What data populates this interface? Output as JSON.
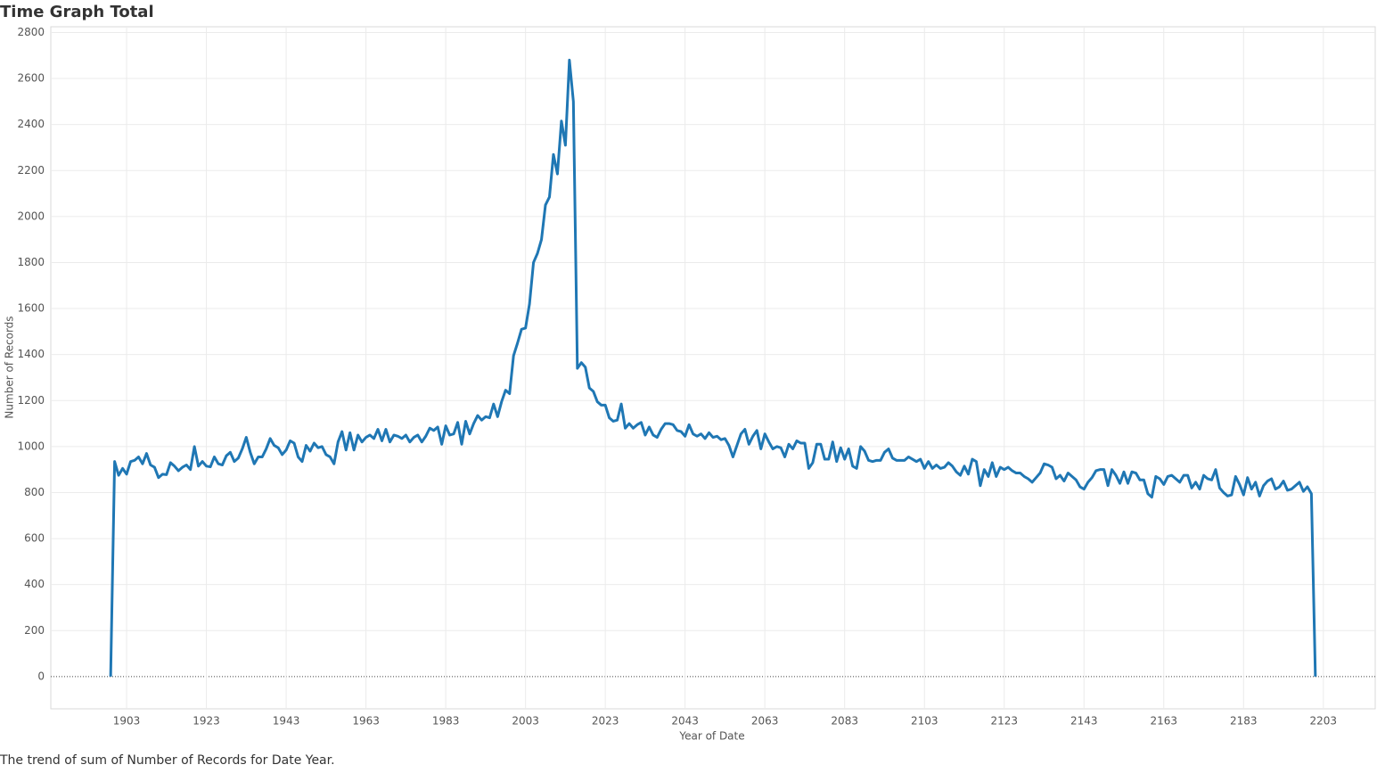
{
  "chart_data": {
    "type": "line",
    "title": "Time Graph Total",
    "x_label": "Year of Date",
    "y_label": "Number of Records",
    "caption": "The trend of sum of Number of Records for Date Year.",
    "x": [
      1899,
      1900,
      1901,
      1902,
      1903,
      1904,
      1905,
      1906,
      1907,
      1908,
      1909,
      1910,
      1911,
      1912,
      1913,
      1914,
      1915,
      1916,
      1917,
      1918,
      1919,
      1920,
      1921,
      1922,
      1923,
      1924,
      1925,
      1926,
      1927,
      1928,
      1929,
      1930,
      1931,
      1932,
      1933,
      1934,
      1935,
      1936,
      1937,
      1938,
      1939,
      1940,
      1941,
      1942,
      1943,
      1944,
      1945,
      1946,
      1947,
      1948,
      1949,
      1950,
      1951,
      1952,
      1953,
      1954,
      1955,
      1956,
      1957,
      1958,
      1959,
      1960,
      1961,
      1962,
      1963,
      1964,
      1965,
      1966,
      1967,
      1968,
      1969,
      1970,
      1971,
      1972,
      1973,
      1974,
      1975,
      1976,
      1977,
      1978,
      1979,
      1980,
      1981,
      1982,
      1983,
      1984,
      1985,
      1986,
      1987,
      1988,
      1989,
      1990,
      1991,
      1992,
      1993,
      1994,
      1995,
      1996,
      1997,
      1998,
      1999,
      2000,
      2001,
      2002,
      2003,
      2004,
      2005,
      2006,
      2007,
      2008,
      2009,
      2010,
      2011,
      2012,
      2013,
      2014,
      2015,
      2016,
      2017,
      2018,
      2019,
      2020,
      2021,
      2022,
      2023,
      2024,
      2025,
      2026,
      2027,
      2028,
      2029,
      2030,
      2031,
      2032,
      2033,
      2034,
      2035,
      2036,
      2037,
      2038,
      2039,
      2040,
      2041,
      2042,
      2043,
      2044,
      2045,
      2046,
      2047,
      2048,
      2049,
      2050,
      2051,
      2052,
      2053,
      2054,
      2055,
      2056,
      2057,
      2058,
      2059,
      2060,
      2061,
      2062,
      2063,
      2064,
      2065,
      2066,
      2067,
      2068,
      2069,
      2070,
      2071,
      2072,
      2073,
      2074,
      2075,
      2076,
      2077,
      2078,
      2079,
      2080,
      2081,
      2082,
      2083,
      2084,
      2085,
      2086,
      2087,
      2088,
      2089,
      2090,
      2091,
      2092,
      2093,
      2094,
      2095,
      2096,
      2097,
      2098,
      2099,
      2100,
      2101,
      2102,
      2103,
      2104,
      2105,
      2106,
      2107,
      2108,
      2109,
      2110,
      2111,
      2112,
      2113,
      2114,
      2115,
      2116,
      2117,
      2118,
      2119,
      2120,
      2121,
      2122,
      2123,
      2124,
      2125,
      2126,
      2127,
      2128,
      2129,
      2130,
      2131,
      2132,
      2133,
      2134,
      2135,
      2136,
      2137,
      2138,
      2139,
      2140,
      2141,
      2142,
      2143,
      2144,
      2145,
      2146,
      2147,
      2148,
      2149,
      2150,
      2151,
      2152,
      2153,
      2154,
      2155,
      2156,
      2157,
      2158,
      2159,
      2160,
      2161,
      2162,
      2163,
      2164,
      2165,
      2166,
      2167,
      2168,
      2169,
      2170,
      2171,
      2172,
      2173,
      2174,
      2175,
      2176,
      2177,
      2178,
      2179,
      2180,
      2181,
      2182,
      2183,
      2184,
      2185,
      2186,
      2187,
      2188,
      2189,
      2190,
      2191,
      2192,
      2193,
      2194,
      2195,
      2196,
      2197,
      2198,
      2199,
      2200,
      2201
    ],
    "series": [
      {
        "name": "Number of Records",
        "color": "#1f77b4",
        "values": [
          0,
          935,
          875,
          905,
          880,
          935,
          940,
          955,
          925,
          970,
          920,
          910,
          865,
          880,
          878,
          930,
          915,
          895,
          910,
          920,
          900,
          1000,
          915,
          935,
          915,
          912,
          955,
          925,
          920,
          960,
          975,
          935,
          950,
          990,
          1040,
          975,
          925,
          955,
          955,
          990,
          1035,
          1005,
          995,
          965,
          985,
          1025,
          1015,
          955,
          935,
          1005,
          980,
          1015,
          995,
          1000,
          965,
          955,
          925,
          1020,
          1065,
          985,
          1060,
          985,
          1050,
          1020,
          1040,
          1050,
          1035,
          1075,
          1025,
          1075,
          1020,
          1050,
          1045,
          1035,
          1050,
          1020,
          1040,
          1050,
          1020,
          1045,
          1080,
          1070,
          1085,
          1010,
          1090,
          1050,
          1055,
          1105,
          1010,
          1110,
          1055,
          1100,
          1135,
          1115,
          1130,
          1125,
          1185,
          1130,
          1195,
          1245,
          1230,
          1395,
          1450,
          1510,
          1515,
          1620,
          1800,
          1840,
          1900,
          2050,
          2085,
          2270,
          2185,
          2415,
          2310,
          2680,
          2500,
          1340,
          1365,
          1345,
          1255,
          1240,
          1195,
          1180,
          1180,
          1125,
          1110,
          1115,
          1185,
          1080,
          1100,
          1080,
          1095,
          1105,
          1050,
          1085,
          1050,
          1040,
          1075,
          1100,
          1100,
          1095,
          1070,
          1065,
          1045,
          1095,
          1055,
          1045,
          1055,
          1035,
          1060,
          1040,
          1045,
          1030,
          1035,
          1005,
          955,
          1005,
          1055,
          1075,
          1010,
          1045,
          1070,
          990,
          1055,
          1020,
          990,
          1000,
          995,
          955,
          1010,
          990,
          1025,
          1015,
          1015,
          905,
          930,
          1010,
          1010,
          945,
          945,
          1020,
          935,
          995,
          945,
          990,
          915,
          905,
          1000,
          980,
          940,
          935,
          940,
          940,
          975,
          990,
          950,
          940,
          940,
          940,
          955,
          945,
          935,
          945,
          905,
          935,
          905,
          920,
          905,
          910,
          930,
          915,
          890,
          875,
          915,
          880,
          945,
          935,
          830,
          900,
          870,
          930,
          870,
          910,
          900,
          910,
          895,
          885,
          885,
          870,
          860,
          845,
          865,
          885,
          925,
          920,
          910,
          860,
          875,
          850,
          885,
          870,
          855,
          825,
          815,
          845,
          865,
          895,
          900,
          900,
          830,
          900,
          875,
          840,
          890,
          840,
          890,
          885,
          855,
          855,
          795,
          780,
          870,
          860,
          835,
          870,
          875,
          860,
          845,
          875,
          875,
          820,
          845,
          815,
          875,
          860,
          855,
          900,
          820,
          800,
          785,
          790,
          870,
          835,
          790,
          865,
          815,
          845,
          785,
          830,
          850,
          860,
          815,
          825,
          850,
          810,
          815,
          830,
          845,
          805,
          825,
          795,
          0
        ]
      }
    ],
    "xlim": [
      1884,
      2216
    ],
    "xticks": [
      1903,
      1923,
      1943,
      1963,
      1983,
      2003,
      2023,
      2043,
      2063,
      2083,
      2103,
      2123,
      2143,
      2163,
      2183,
      2203
    ],
    "ylim": [
      -140,
      2825
    ],
    "yticks": [
      0,
      200,
      400,
      600,
      800,
      1000,
      1200,
      1400,
      1600,
      1800,
      2000,
      2200,
      2400,
      2600,
      2800
    ],
    "grid": true
  }
}
